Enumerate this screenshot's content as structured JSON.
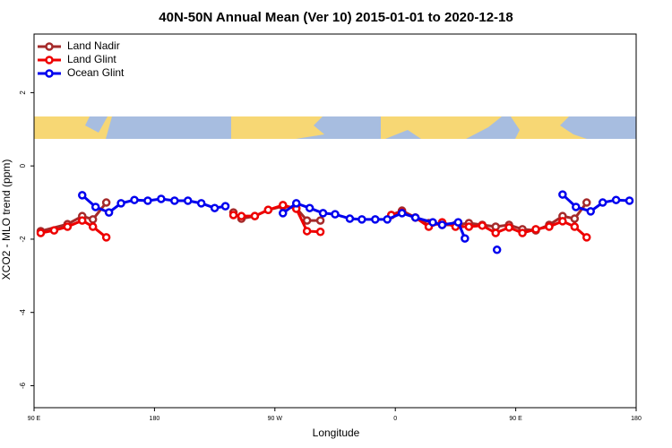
{
  "chart_data": {
    "type": "line",
    "title": "40N-50N Annual Mean (Ver 10)   2015-01-01 to 2020-12-18",
    "xlabel": "Longitude",
    "ylabel": "XCO2 - MLO trend (ppm)",
    "xlim": [
      90,
      540
    ],
    "xticks": [
      {
        "value": 90,
        "label": "90 E"
      },
      {
        "value": 180,
        "label": "180"
      },
      {
        "value": 270,
        "label": "90 W"
      },
      {
        "value": 360,
        "label": "0"
      },
      {
        "value": 450,
        "label": "90 E"
      },
      {
        "value": 540,
        "label": "180"
      }
    ],
    "ylim": [
      -6.6,
      3.6
    ],
    "yticks": [
      2,
      0,
      -2,
      -4,
      -6
    ],
    "legend": "top-left",
    "series": [
      {
        "name": "Land Nadir",
        "color": "#a52a2a",
        "x": [
          95,
          115,
          126,
          134,
          144,
          null,
          239,
          245,
          255,
          265,
          276,
          286,
          294,
          304,
          null,
          357,
          365,
          375,
          385,
          395,
          405,
          415,
          425,
          435,
          445,
          455,
          465,
          475,
          485,
          494,
          503
        ],
        "values": [
          -1.78,
          -1.59,
          -1.37,
          -1.46,
          -1.0,
          null,
          -1.27,
          -1.44,
          -1.37,
          -1.2,
          -1.1,
          -1.15,
          -1.49,
          -1.49,
          null,
          -1.34,
          -1.22,
          -1.41,
          -1.56,
          -1.61,
          -1.61,
          -1.56,
          -1.61,
          -1.66,
          -1.61,
          -1.73,
          -1.76,
          -1.61,
          -1.37,
          -1.44,
          -1.0
        ]
      },
      {
        "name": "Land Glint",
        "color": "#ee0000",
        "x": [
          95,
          105,
          115,
          126,
          134,
          144,
          null,
          239,
          245,
          255,
          265,
          276,
          286,
          294,
          304,
          null,
          357,
          365,
          375,
          385,
          395,
          405,
          415,
          425,
          435,
          445,
          455,
          465,
          475,
          485,
          494,
          503
        ],
        "values": [
          -1.83,
          -1.76,
          -1.66,
          -1.49,
          -1.66,
          -1.95,
          null,
          -1.34,
          -1.37,
          -1.37,
          -1.2,
          -1.07,
          -1.17,
          -1.78,
          -1.8,
          null,
          -1.34,
          -1.27,
          -1.41,
          -1.66,
          -1.54,
          -1.66,
          -1.66,
          -1.63,
          -1.83,
          -1.68,
          -1.83,
          -1.73,
          -1.66,
          -1.51,
          -1.66,
          -1.95
        ]
      },
      {
        "name": "Ocean Glint",
        "color": "#0000ee",
        "x": [
          126,
          136,
          146,
          155,
          165,
          175,
          185,
          195,
          205,
          215,
          225,
          233,
          null,
          276,
          286,
          296,
          306,
          315,
          326,
          335,
          345,
          354,
          365,
          375,
          388,
          395,
          407,
          412,
          null,
          436,
          null,
          485,
          495,
          506,
          515,
          525,
          535
        ],
        "values": [
          -0.8,
          -1.12,
          -1.27,
          -1.02,
          -0.93,
          -0.95,
          -0.9,
          -0.95,
          -0.95,
          -1.02,
          -1.15,
          -1.1,
          null,
          -1.29,
          -1.02,
          -1.15,
          -1.29,
          -1.32,
          -1.44,
          -1.46,
          -1.46,
          -1.46,
          -1.29,
          -1.41,
          -1.54,
          -1.61,
          -1.54,
          -1.98,
          null,
          -2.29,
          null,
          -0.78,
          -1.12,
          -1.24,
          -1.0,
          -0.93,
          -0.95
        ]
      }
    ]
  }
}
